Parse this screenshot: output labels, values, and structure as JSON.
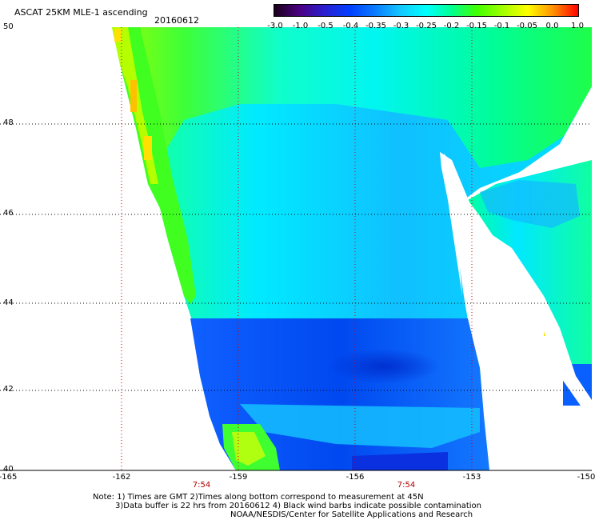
{
  "title": "ASCAT 25KM MLE-1 ascending",
  "date": "20160612",
  "colorbar": {
    "labels": [
      "-3.0",
      "-1.0",
      "-0.5",
      "-0.4",
      "-0.35",
      "-0.3",
      "-0.25",
      "-0.2",
      "-0.15",
      "-0.1",
      "-0.05",
      "0.0",
      "1.0"
    ],
    "colors": [
      "#1a001a",
      "#4b0082",
      "#2a1fd0",
      "#0040ff",
      "#0a7dff",
      "#14c8ff",
      "#00ffff",
      "#00ff90",
      "#40ff00",
      "#a0ff00",
      "#ffff00",
      "#ff9000",
      "#ff0000"
    ]
  },
  "lat_labels": [
    "50",
    "48",
    "46",
    "44",
    "42",
    "40"
  ],
  "lon_labels": [
    "-165",
    "-162",
    "-159",
    "-156",
    "-153",
    "-150"
  ],
  "time_labels": [
    "7:54",
    "7:54"
  ],
  "notes": [
    "Note: 1) Times are GMT 2)Times along bottom correspond to measurement at 45N",
    "3)Data buffer is 22 hrs from 20160612 4) Black wind barbs indicate possible contamination",
    "NOAA/NESDIS/Center for Satellite Applications and Research"
  ],
  "colors": {
    "dark_blue": "#0046ff",
    "mid_blue": "#1478ff",
    "light_blue": "#14c8ff",
    "cyan": "#00ffff",
    "cyan_green": "#00ff90",
    "green": "#40ff00",
    "yellow_green": "#b4ff00",
    "yellow": "#ffff00",
    "orange": "#ffb000",
    "grid": "#cc0000"
  }
}
